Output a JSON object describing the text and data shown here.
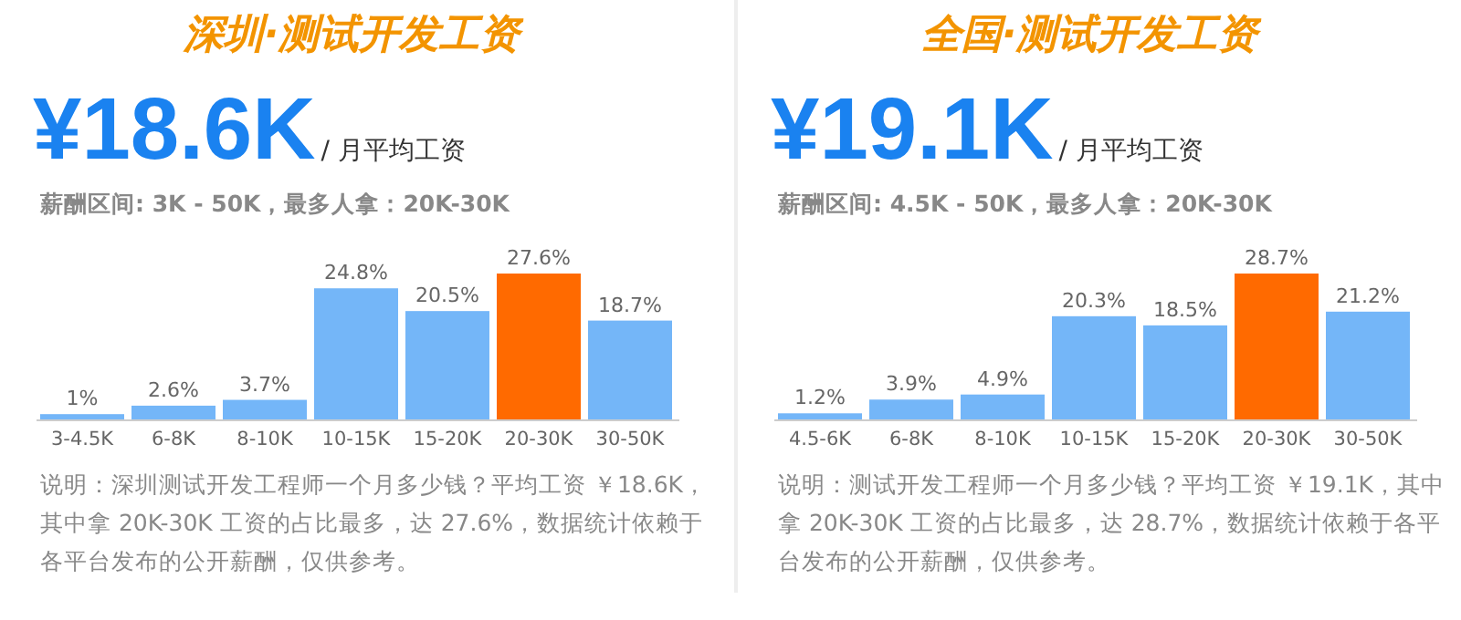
{
  "chart_data": [
    {
      "type": "bar",
      "title": "深圳·测试开发工资",
      "subtitle": "¥18.6K",
      "annotations": [
        "/ 月平均工资",
        "薪酬区间: 3K - 50K，最多人拿：20K-30K",
        "说明：深圳测试开发工程师一个月多少钱？平均工资 ￥18.6K，其中拿 20K-30K 工资的占比最多，达 27.6%，数据统计依赖于各平台发布的公开薪酬，仅供参考。"
      ],
      "categories": [
        "3-4.5K",
        "6-8K",
        "8-10K",
        "10-15K",
        "15-20K",
        "20-30K",
        "30-50K"
      ],
      "values": [
        1,
        2.6,
        3.7,
        24.8,
        20.5,
        27.6,
        18.7
      ],
      "value_labels": [
        "1%",
        "2.6%",
        "3.7%",
        "24.8%",
        "20.5%",
        "27.6%",
        "18.7%"
      ],
      "colors": [
        "#74b6f8",
        "#74b6f8",
        "#74b6f8",
        "#74b6f8",
        "#74b6f8",
        "#ff6a00",
        "#74b6f8"
      ]
    },
    {
      "type": "bar",
      "title": "全国·测试开发工资",
      "subtitle": "¥19.1K",
      "annotations": [
        "/ 月平均工资",
        "薪酬区间: 4.5K - 50K，最多人拿：20K-30K",
        "说明：测试开发工程师一个月多少钱？平均工资 ￥19.1K，其中拿 20K-30K 工资的占比最多，达 28.7%，数据统计依赖于各平台发布的公开薪酬，仅供参考。"
      ],
      "categories": [
        "4.5-6K",
        "6-8K",
        "8-10K",
        "10-15K",
        "15-20K",
        "20-30K",
        "30-50K"
      ],
      "values": [
        1.2,
        3.9,
        4.9,
        20.3,
        18.5,
        28.7,
        21.2
      ],
      "value_labels": [
        "1.2%",
        "3.9%",
        "4.9%",
        "20.3%",
        "18.5%",
        "28.7%",
        "21.2%"
      ],
      "colors": [
        "#74b6f8",
        "#74b6f8",
        "#74b6f8",
        "#74b6f8",
        "#74b6f8",
        "#ff6a00",
        "#74b6f8"
      ]
    }
  ]
}
